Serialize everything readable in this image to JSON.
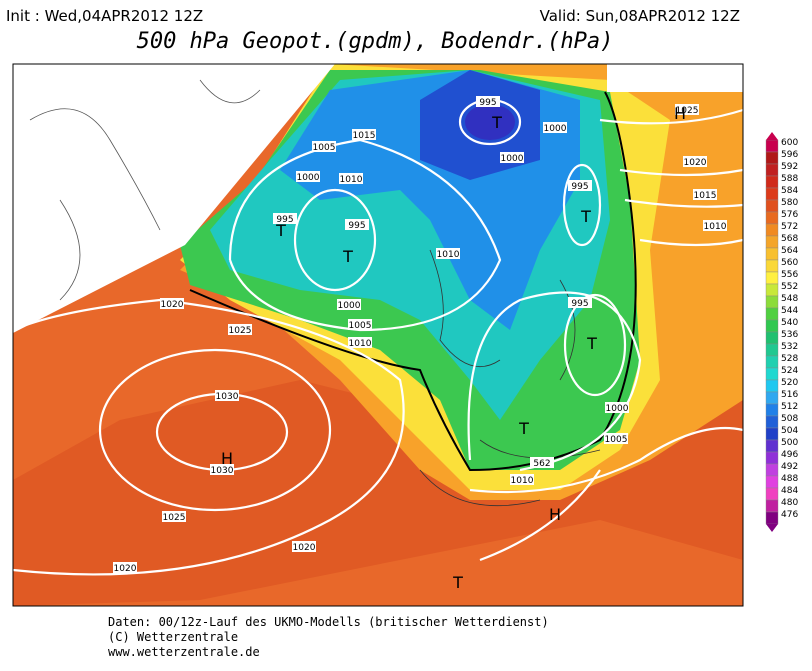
{
  "header": {
    "init": "Init : Wed,04APR2012 12Z",
    "valid": "Valid: Sun,08APR2012 12Z",
    "title": "500 hPa Geopot.(gpdm), Bodendr.(hPa)"
  },
  "map": {
    "isobar_labels": [
      "995",
      "1000",
      "1000",
      "1015",
      "1005",
      "1010",
      "1000",
      "995",
      "995",
      "995",
      "1010",
      "1000",
      "1005",
      "1010",
      "995",
      "1020",
      "1025",
      "1030",
      "1030",
      "1025",
      "1020",
      "1020",
      "1010",
      "1005",
      "1000",
      "1020",
      "1015",
      "1010",
      "1025",
      "562"
    ],
    "pressure_centers": [
      "T",
      "T",
      "T",
      "T",
      "T",
      "T",
      "H",
      "H",
      "T",
      "H"
    ]
  },
  "colorbar": {
    "levels": [
      600,
      596,
      592,
      588,
      584,
      580,
      576,
      572,
      568,
      564,
      560,
      556,
      552,
      548,
      544,
      540,
      536,
      532,
      528,
      524,
      520,
      516,
      512,
      508,
      504,
      500,
      496,
      492,
      488,
      484,
      480,
      476
    ],
    "colors": [
      "#c8004e",
      "#b01818",
      "#c02020",
      "#d02a1a",
      "#dc3a1a",
      "#e0501e",
      "#e86a20",
      "#f08a22",
      "#f4a52a",
      "#f8c030",
      "#fad838",
      "#fff040",
      "#c8e83a",
      "#8cdc3a",
      "#50d040",
      "#30c850",
      "#20c070",
      "#20c890",
      "#20d0b0",
      "#20d8d0",
      "#20c8f0",
      "#30a8f0",
      "#2080e8",
      "#2060d8",
      "#2040c8",
      "#6030d0",
      "#9030d8",
      "#c040e0",
      "#e040e0",
      "#f040c0",
      "#c020a0",
      "#800080"
    ]
  },
  "footer": {
    "lines": [
      "Daten: 00/12z-Lauf des UKMO-Modells (britischer Wetterdienst)",
      "(C) Wetterzentrale",
      "www.wetterzentrale.de"
    ]
  }
}
